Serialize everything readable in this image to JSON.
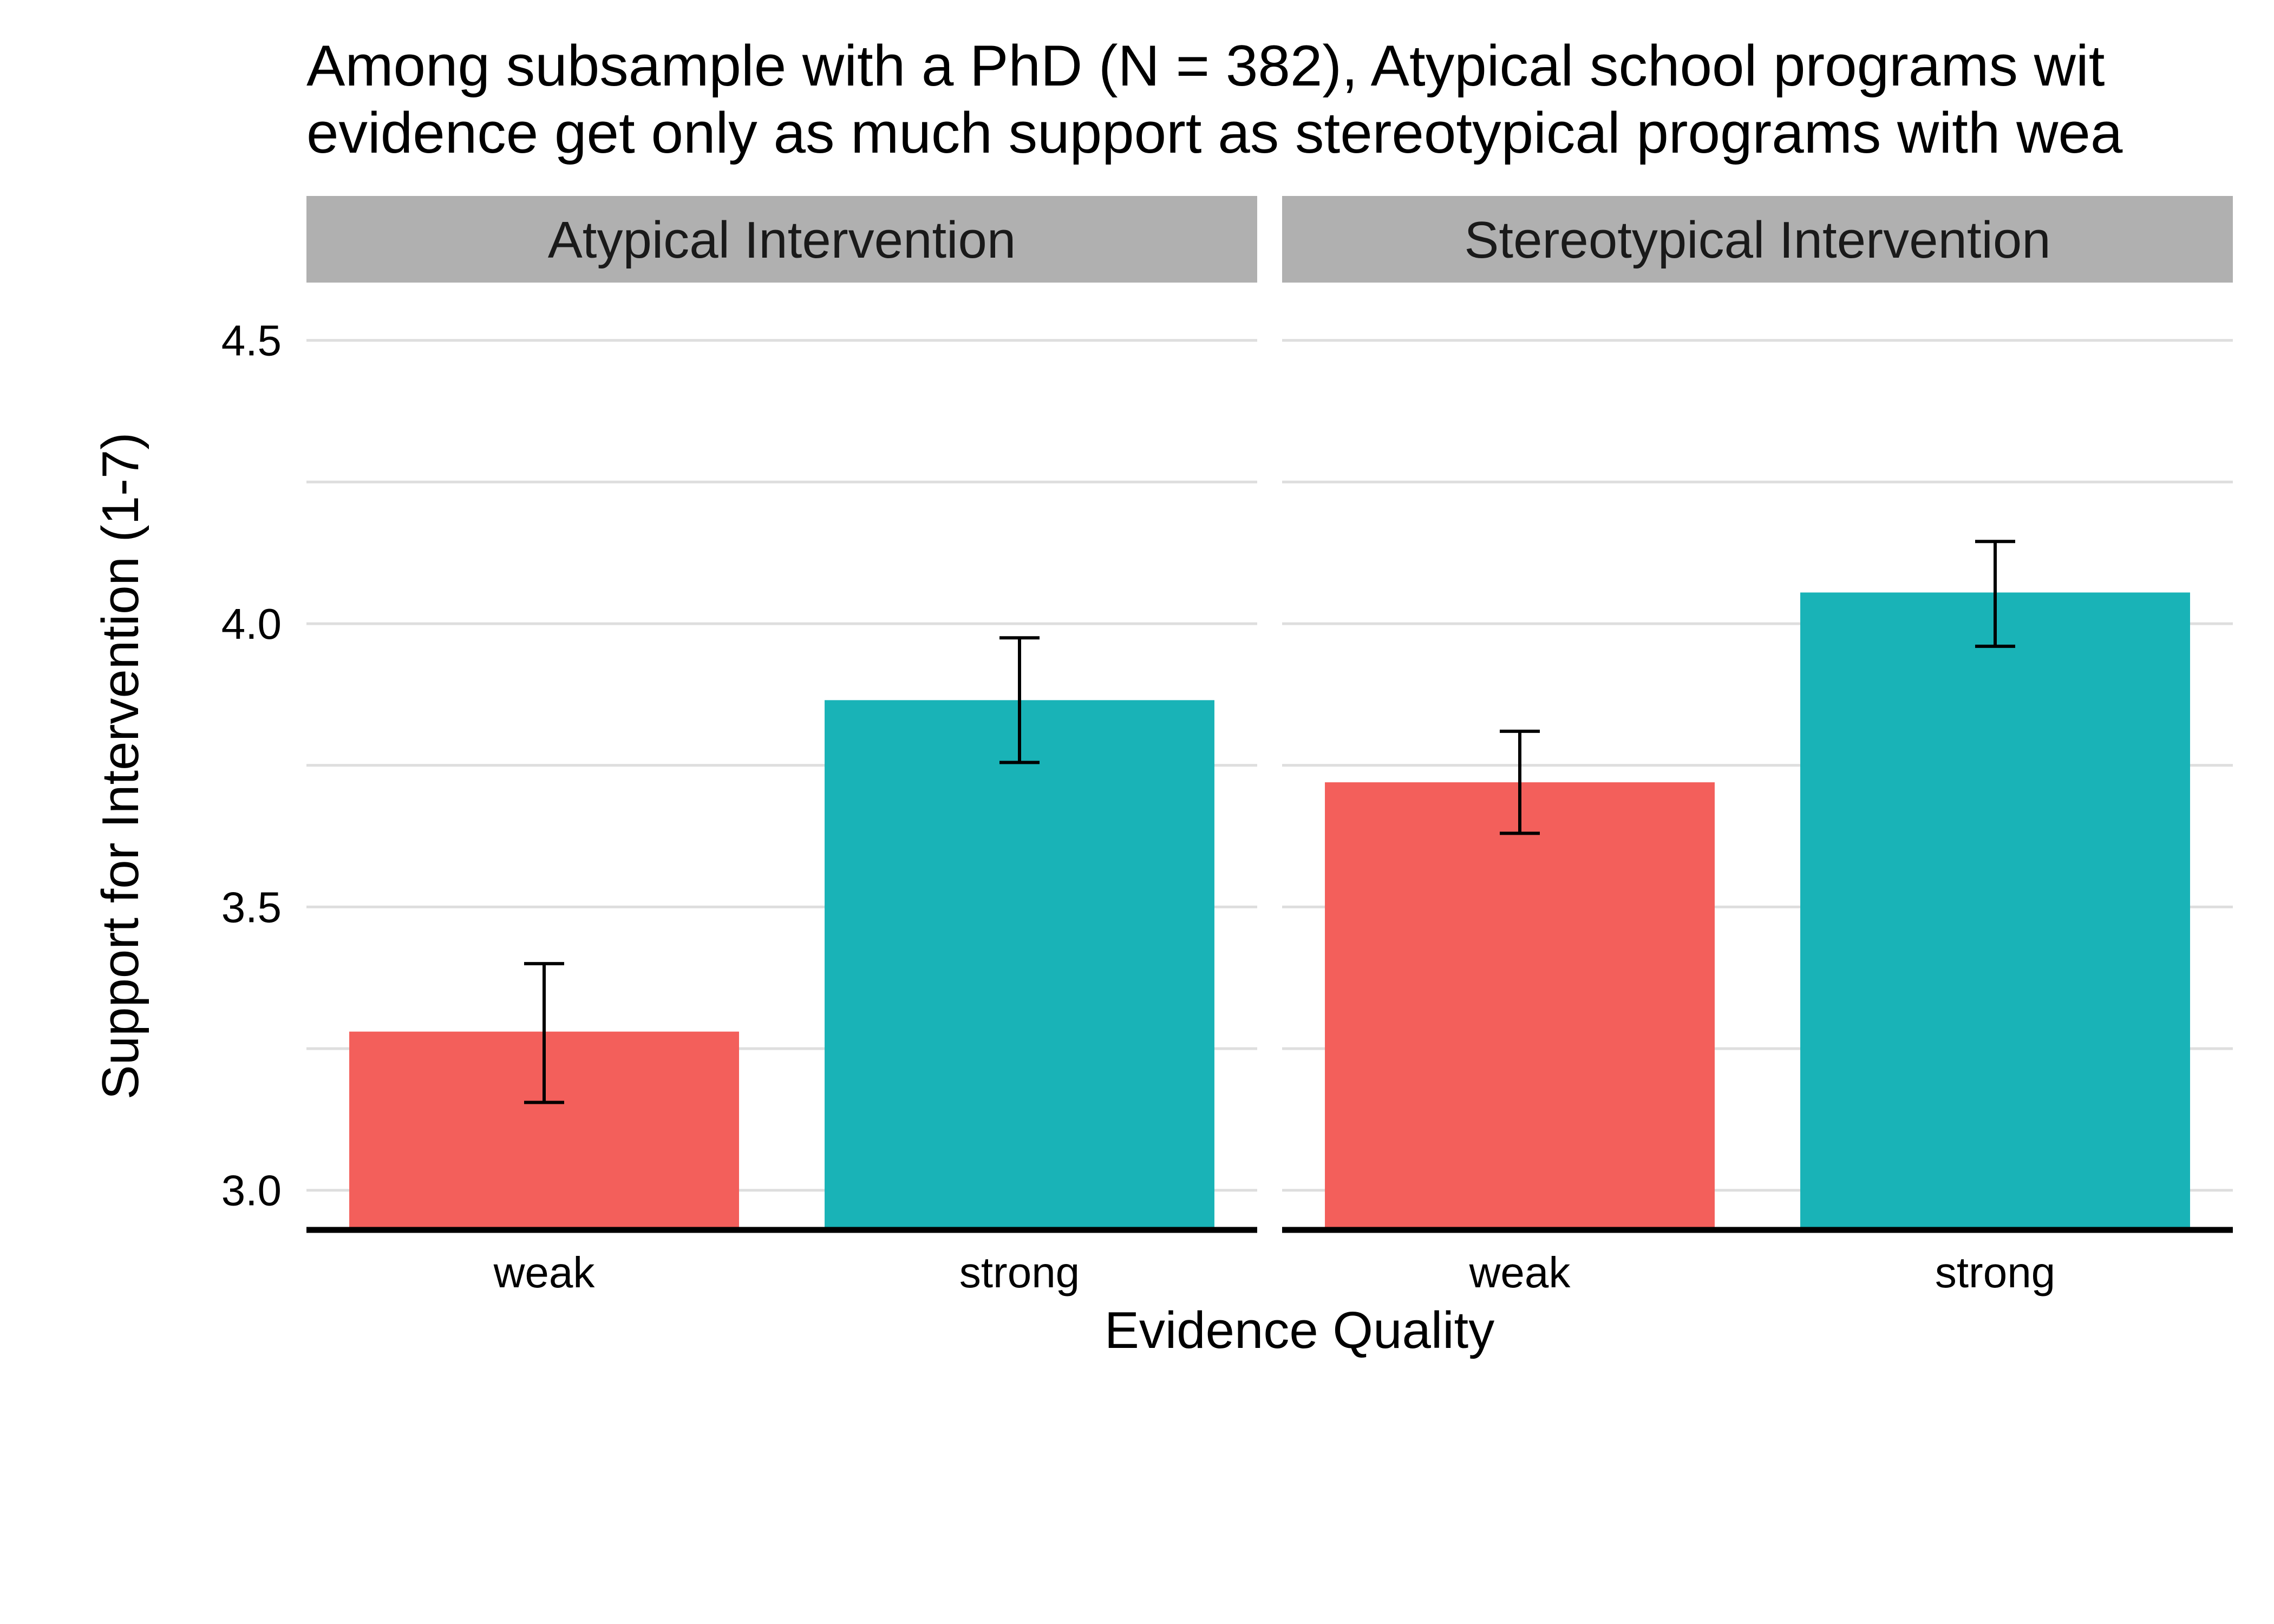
{
  "chart_data": {
    "type": "bar",
    "title": [
      "Among subsample with a PhD (N = 382), Atypical school programs wit",
      "evidence get only as much support as stereotypical programs with wea"
    ],
    "xlabel": "Evidence Quality",
    "ylabel": "Support for Intervention (1-7)",
    "ylim": [
      2.93,
      4.58
    ],
    "yticks": [
      3.0,
      3.5,
      4.0,
      4.5
    ],
    "ytick_labels": [
      "3.0",
      "3.5",
      "4.0",
      "4.5"
    ],
    "grid": true,
    "categories": [
      "weak",
      "strong"
    ],
    "colors": {
      "weak": "#f35f5b",
      "strong": "#19b3b7"
    },
    "facets": [
      {
        "label": "Atypical Intervention",
        "bars": [
          {
            "category": "weak",
            "value": 3.28,
            "ci_low": 3.155,
            "ci_high": 3.4
          },
          {
            "category": "strong",
            "value": 3.865,
            "ci_low": 3.755,
            "ci_high": 3.975
          }
        ]
      },
      {
        "label": "Stereotypical Intervention",
        "bars": [
          {
            "category": "weak",
            "value": 3.72,
            "ci_low": 3.63,
            "ci_high": 3.81
          },
          {
            "category": "strong",
            "value": 4.055,
            "ci_low": 3.96,
            "ci_high": 4.145
          }
        ]
      }
    ]
  }
}
